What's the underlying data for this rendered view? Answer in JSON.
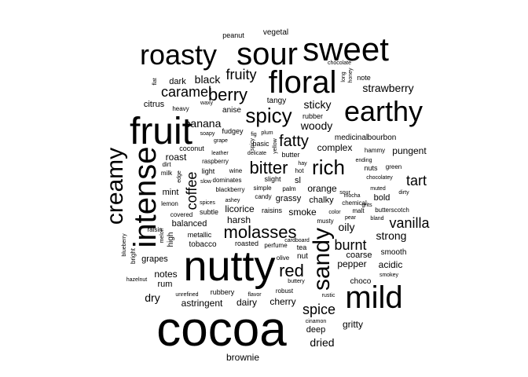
{
  "words": [
    "cocoa",
    "nutty",
    "sweet",
    "sour",
    "roasty",
    "floral",
    "earthy",
    "fruit",
    "intense",
    "mild",
    "creamy",
    "sandy",
    "spicy",
    "rich",
    "molasses",
    "berry",
    "bitter",
    "fatty",
    "caramel",
    "fruity",
    "black",
    "coffee",
    "spice",
    "red",
    "burnt",
    "vanilla",
    "tart",
    "strawberry",
    "woody",
    "sticky",
    "banana",
    "dried",
    "dry",
    "complex",
    "pungent",
    "strong",
    "oily",
    "orange",
    "licorice",
    "smoke",
    "roast",
    "harsh",
    "notes",
    "acidic",
    "pepper",
    "coarse",
    "smooth",
    "gritty",
    "deep",
    "cherry",
    "dairy",
    "astringent",
    "rum",
    "grapes",
    "mint",
    "balanced",
    "tobacco",
    "metallic",
    "citrus",
    "dark",
    "anise",
    "tangy",
    "brownie",
    "peanut",
    "vegetal",
    "chocolate",
    "honey",
    "long",
    "note",
    "flat",
    "heavy",
    "waxy",
    "medicinal",
    "bourbon",
    "rubber",
    "hammy",
    "ending",
    "nuts",
    "green",
    "bold",
    "muted",
    "dirty",
    "butterscotch",
    "chocolatey",
    "mocha",
    "chemical",
    "malt",
    "grits",
    "bland",
    "pear",
    "musty",
    "color",
    "sl",
    "chalky",
    "grassy",
    "raisins",
    "candy",
    "palm",
    "simple",
    "slight",
    "hot",
    "blackberry",
    "dominates",
    "wine",
    "light",
    "slow",
    "edge",
    "dirt",
    "milk",
    "lemon",
    "spices",
    "covered",
    "subtle",
    "raisin",
    "melon",
    "high",
    "blueberry",
    "bright",
    "hazelnut",
    "roasted",
    "perfume",
    "olive",
    "nut",
    "buttery",
    "tea",
    "cardboard",
    "robust",
    "flavor",
    "rubbery",
    "unrefined",
    "rustic",
    "cinamon",
    "smokey",
    "choco",
    "fudgey",
    "soapy",
    "grape",
    "fig",
    "plum",
    "spicy",
    "yellow",
    "basic",
    "leather",
    "coconut",
    "raspberry",
    "ashey",
    "delicate",
    "butter",
    "hay",
    "sour"
  ],
  "word_colors": {
    "text": "#000000",
    "background": "#ffffff"
  }
}
